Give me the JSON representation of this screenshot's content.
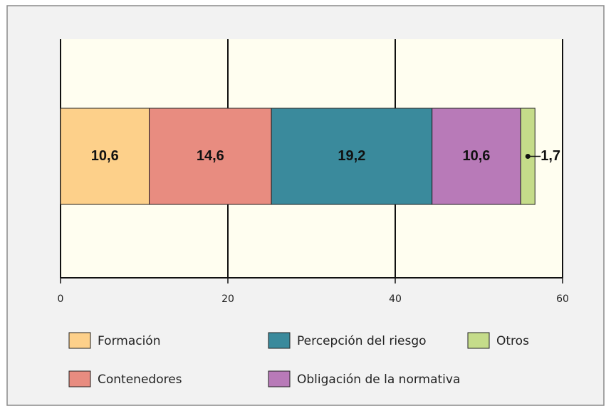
{
  "chart_data": {
    "type": "stacked-bar",
    "orientation": "horizontal",
    "series": [
      {
        "name": "Formación",
        "color": "#fdd08a",
        "values": [
          10.6
        ],
        "value_labels": [
          "10,6"
        ]
      },
      {
        "name": "Contenedores",
        "color": "#e88c80",
        "values": [
          14.6
        ],
        "value_labels": [
          "14,6"
        ]
      },
      {
        "name": "Percepción del riesgo",
        "color": "#3a8a9c",
        "values": [
          19.2
        ],
        "value_labels": [
          "19,2"
        ]
      },
      {
        "name": "Obligación de la normativa",
        "color": "#b87ab8",
        "values": [
          10.6
        ],
        "value_labels": [
          "10,6"
        ]
      },
      {
        "name": "Otros",
        "color": "#c5dc8a",
        "values": [
          1.7
        ],
        "value_labels": [
          "1,7"
        ]
      }
    ],
    "xlim": [
      0,
      60
    ],
    "xticks": [
      0,
      20,
      40,
      60
    ],
    "grid": true
  }
}
